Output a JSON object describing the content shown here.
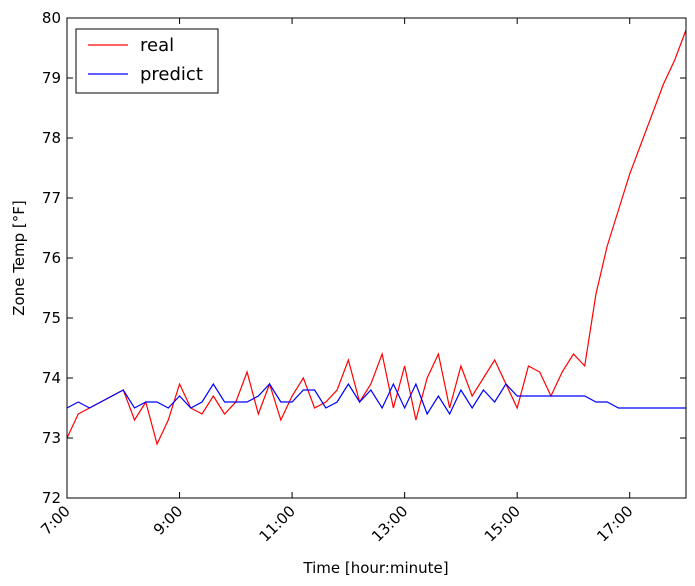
{
  "chart_data": {
    "type": "line",
    "x": [
      7.0,
      7.2,
      7.4,
      7.6,
      7.8,
      8.0,
      8.2,
      8.4,
      8.6,
      8.8,
      9.0,
      9.2,
      9.4,
      9.6,
      9.8,
      10.0,
      10.2,
      10.4,
      10.6,
      10.8,
      11.0,
      11.2,
      11.4,
      11.6,
      11.8,
      12.0,
      12.2,
      12.4,
      12.6,
      12.8,
      13.0,
      13.2,
      13.4,
      13.6,
      13.8,
      14.0,
      14.2,
      14.4,
      14.6,
      14.8,
      15.0,
      15.2,
      15.4,
      15.6,
      15.8,
      16.0,
      16.2,
      16.4,
      16.6,
      16.8,
      17.0,
      17.2,
      17.4,
      17.6,
      17.8,
      18.0
    ],
    "series": [
      {
        "name": "real",
        "color": "#ff0000",
        "values": [
          73.0,
          73.4,
          73.5,
          73.6,
          73.7,
          73.8,
          73.3,
          73.6,
          72.9,
          73.3,
          73.9,
          73.5,
          73.4,
          73.7,
          73.4,
          73.6,
          74.1,
          73.4,
          73.9,
          73.3,
          73.7,
          74.0,
          73.5,
          73.6,
          73.8,
          74.3,
          73.6,
          73.9,
          74.4,
          73.5,
          74.2,
          73.3,
          74.0,
          74.4,
          73.5,
          74.2,
          73.7,
          74.0,
          74.3,
          73.9,
          73.5,
          74.2,
          74.1,
          73.7,
          74.1,
          74.4,
          74.2,
          75.4,
          76.2,
          76.8,
          77.4,
          77.9,
          78.4,
          78.9,
          79.3,
          79.8
        ]
      },
      {
        "name": "predict",
        "color": "#0000ff",
        "values": [
          73.5,
          73.6,
          73.5,
          73.6,
          73.7,
          73.8,
          73.5,
          73.6,
          73.6,
          73.5,
          73.7,
          73.5,
          73.6,
          73.9,
          73.6,
          73.6,
          73.6,
          73.7,
          73.9,
          73.6,
          73.6,
          73.8,
          73.8,
          73.5,
          73.6,
          73.9,
          73.6,
          73.8,
          73.5,
          73.9,
          73.5,
          73.9,
          73.4,
          73.7,
          73.4,
          73.8,
          73.5,
          73.8,
          73.6,
          73.9,
          73.7,
          73.7,
          73.7,
          73.7,
          73.7,
          73.7,
          73.7,
          73.6,
          73.6,
          73.5,
          73.5,
          73.5,
          73.5,
          73.5,
          73.5,
          73.5
        ]
      }
    ],
    "xlabel": "Time [hour:minute]",
    "ylabel": "Zone Temp [°F]",
    "xlim": [
      7,
      18
    ],
    "ylim": [
      72,
      80
    ],
    "xticks": [
      {
        "value": 7,
        "label": "7:00"
      },
      {
        "value": 9,
        "label": "9:00"
      },
      {
        "value": 11,
        "label": "11:00"
      },
      {
        "value": 13,
        "label": "13:00"
      },
      {
        "value": 15,
        "label": "15:00"
      },
      {
        "value": 17,
        "label": "17:00"
      }
    ],
    "yticks": [
      72,
      73,
      74,
      75,
      76,
      77,
      78,
      79,
      80
    ],
    "legend": "upper-left",
    "grid": false
  }
}
